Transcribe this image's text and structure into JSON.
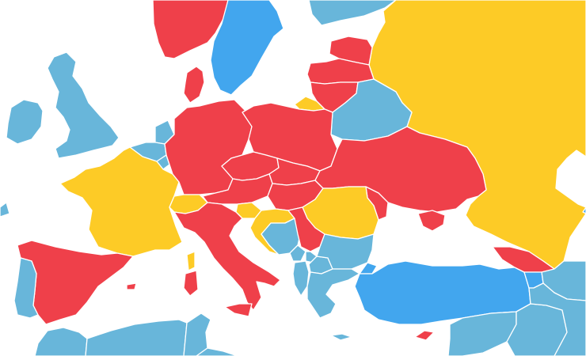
{
  "map": {
    "background": "#ffffff",
    "border_color": "#ffffff",
    "categories": {
      "red": "#ef404a",
      "yellow": "#fdcb26",
      "blue": "#42a6ee",
      "light-blue": "#68b6da"
    },
    "regions": [
      {
        "name": "norway",
        "category": "red"
      },
      {
        "name": "sweden",
        "category": "blue"
      },
      {
        "name": "finland",
        "category": "light-blue"
      },
      {
        "name": "russia",
        "category": "yellow"
      },
      {
        "name": "estonia",
        "category": "red"
      },
      {
        "name": "latvia",
        "category": "red"
      },
      {
        "name": "lithuania",
        "category": "red"
      },
      {
        "name": "kaliningrad",
        "category": "yellow"
      },
      {
        "name": "belarus",
        "category": "light-blue"
      },
      {
        "name": "denmark",
        "category": "red"
      },
      {
        "name": "iceland-edge",
        "category": "light-blue"
      },
      {
        "name": "united-kingdom",
        "category": "light-blue"
      },
      {
        "name": "ireland",
        "category": "light-blue"
      },
      {
        "name": "netherlands",
        "category": "light-blue"
      },
      {
        "name": "belgium",
        "category": "light-blue"
      },
      {
        "name": "luxembourg",
        "category": "light-blue"
      },
      {
        "name": "france",
        "category": "yellow"
      },
      {
        "name": "corsica",
        "category": "yellow"
      },
      {
        "name": "germany",
        "category": "red"
      },
      {
        "name": "poland",
        "category": "red"
      },
      {
        "name": "czechia",
        "category": "red"
      },
      {
        "name": "slovakia",
        "category": "red"
      },
      {
        "name": "austria",
        "category": "red"
      },
      {
        "name": "switzerland",
        "category": "yellow"
      },
      {
        "name": "hungary",
        "category": "red"
      },
      {
        "name": "ukraine",
        "category": "red"
      },
      {
        "name": "moldova",
        "category": "red"
      },
      {
        "name": "crimea",
        "category": "red"
      },
      {
        "name": "romania",
        "category": "yellow"
      },
      {
        "name": "slovenia",
        "category": "yellow"
      },
      {
        "name": "croatia",
        "category": "yellow"
      },
      {
        "name": "bosnia",
        "category": "light-blue"
      },
      {
        "name": "serbia",
        "category": "red"
      },
      {
        "name": "montenegro",
        "category": "light-blue"
      },
      {
        "name": "kosovo",
        "category": "light-blue"
      },
      {
        "name": "albania",
        "category": "light-blue"
      },
      {
        "name": "north-macedonia",
        "category": "light-blue"
      },
      {
        "name": "bulgaria",
        "category": "light-blue"
      },
      {
        "name": "greece",
        "category": "light-blue"
      },
      {
        "name": "italy",
        "category": "red"
      },
      {
        "name": "sardinia",
        "category": "red"
      },
      {
        "name": "sicily",
        "category": "red"
      },
      {
        "name": "spain",
        "category": "red"
      },
      {
        "name": "balearic-islands",
        "category": "red"
      },
      {
        "name": "portugal",
        "category": "light-blue"
      },
      {
        "name": "turkey",
        "category": "blue"
      },
      {
        "name": "istanbul-thrace",
        "category": "blue"
      },
      {
        "name": "georgia",
        "category": "red"
      },
      {
        "name": "armenia",
        "category": "blue"
      },
      {
        "name": "azerbaijan",
        "category": "light-blue"
      },
      {
        "name": "kazakhstan-edge",
        "category": "blue"
      },
      {
        "name": "cyprus",
        "category": "red"
      },
      {
        "name": "syria",
        "category": "light-blue"
      },
      {
        "name": "iraq",
        "category": "light-blue"
      },
      {
        "name": "middle-east",
        "category": "light-blue"
      },
      {
        "name": "morocco",
        "category": "light-blue"
      },
      {
        "name": "algeria",
        "category": "light-blue"
      },
      {
        "name": "tunisia",
        "category": "light-blue"
      },
      {
        "name": "libya-egypt",
        "category": "light-blue"
      },
      {
        "name": "crete",
        "category": "light-blue"
      }
    ]
  }
}
